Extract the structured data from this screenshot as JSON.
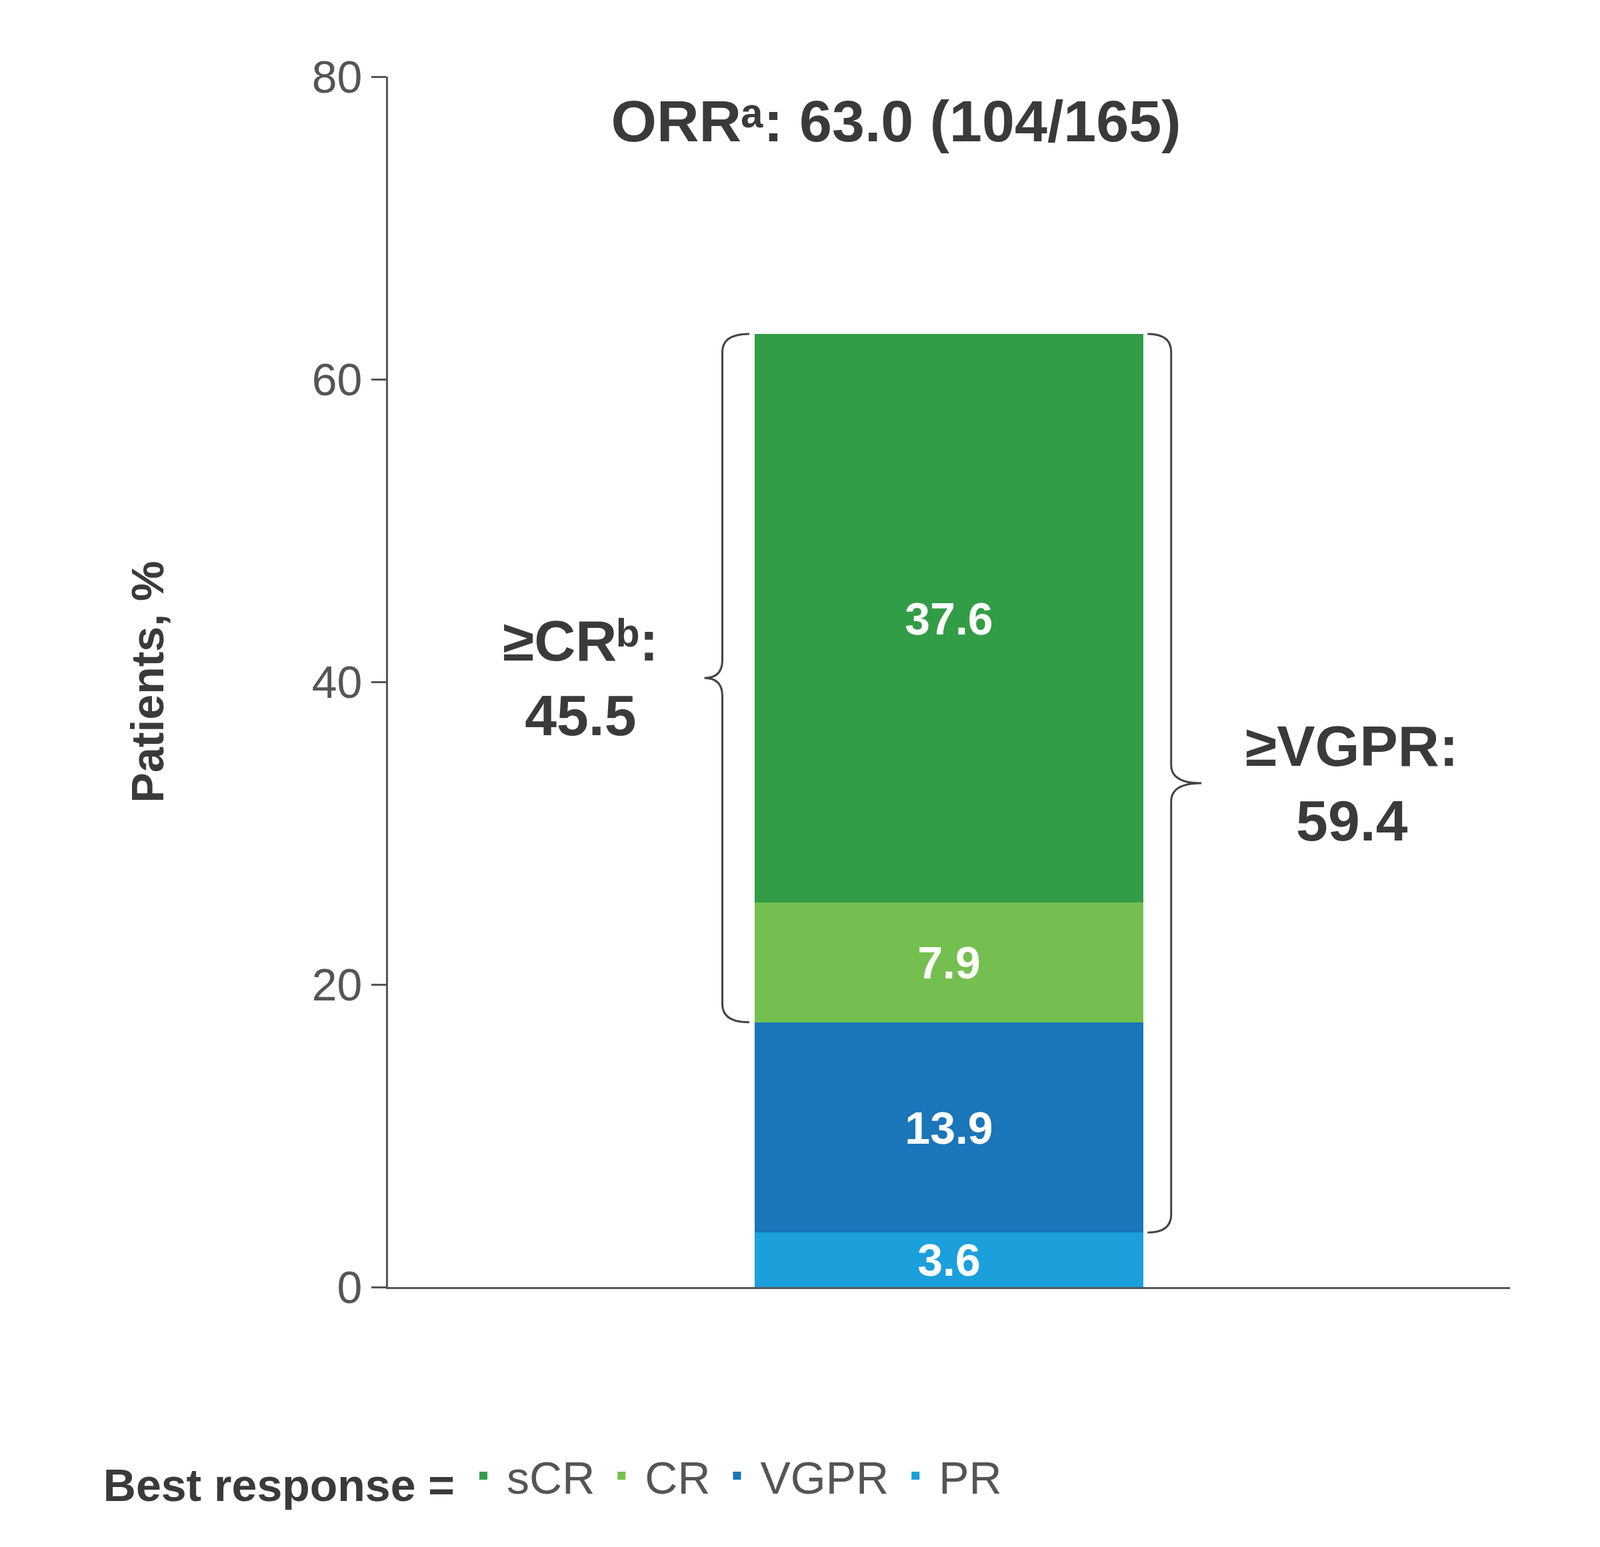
{
  "chart_data": {
    "type": "bar",
    "stacked": true,
    "title": "ORRᵃ: 63.0 (104/165)",
    "y_label": "Patients, %",
    "categories": [
      null
    ],
    "series": [
      {
        "name": "PR",
        "color": "#1ba0dc",
        "values": [
          3.6
        ]
      },
      {
        "name": "VGPR",
        "color": "#1a75b9",
        "values": [
          13.9
        ]
      },
      {
        "name": "CR",
        "color": "#74bf4f",
        "values": [
          7.9
        ]
      },
      {
        "name": "sCR",
        "color": "#339c47",
        "values": [
          37.6
        ]
      }
    ],
    "ylim": [
      0,
      80
    ],
    "yticks": [
      0,
      20,
      40,
      60,
      80
    ],
    "grid": false,
    "data_labels": true,
    "tick_labels": "y",
    "legend_title": "Best response =",
    "legend": "bottom",
    "annotations": [
      {
        "text": [
          "≥CRᵇ:",
          "45.5"
        ],
        "from": "CR"
      },
      {
        "text": [
          "≥VGPR:",
          "59.4"
        ],
        "from": "VGPR"
      }
    ]
  }
}
